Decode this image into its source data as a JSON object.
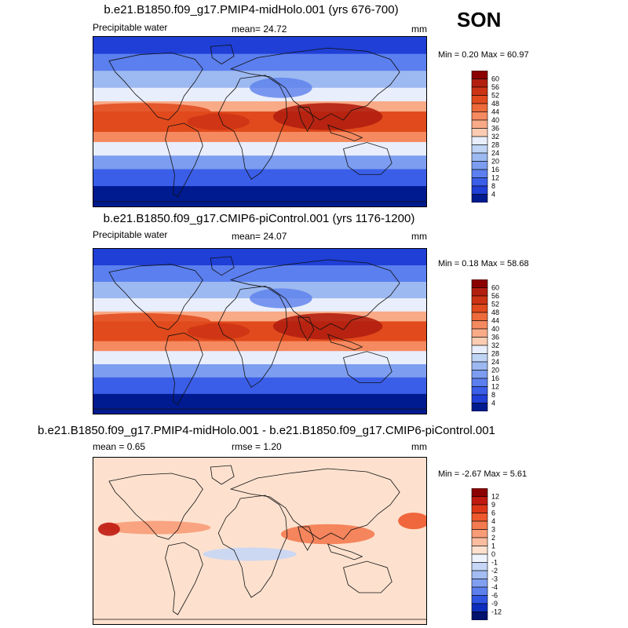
{
  "season": "SON",
  "panels": [
    {
      "title": "b.e21.B1850.f09_g17.PMIP4-midHolo.001 (yrs 676-700)",
      "variable": "Precipitable water",
      "mean": "mean=  24.72",
      "rmse": "",
      "units": "mm",
      "minmax": "Min =   0.20 Max =  60.97",
      "colorbar_labels": [
        "60",
        "56",
        "52",
        "48",
        "44",
        "40",
        "36",
        "32",
        "28",
        "24",
        "20",
        "16",
        "12",
        "8",
        "4"
      ],
      "colors": [
        "#8b0000",
        "#b21f0f",
        "#cc3314",
        "#e14a1c",
        "#ee6a3a",
        "#f5895f",
        "#f9aa86",
        "#fbccb2",
        "#e8eefb",
        "#c0d4f5",
        "#9db9f1",
        "#7c9df0",
        "#5b7fee",
        "#3a5ee8",
        "#1f3fd6",
        "#001a8f"
      ]
    },
    {
      "title": "b.e21.B1850.f09_g17.CMIP6-piControl.001 (yrs 1176-1200)",
      "variable": "Precipitable water",
      "mean": "mean=  24.07",
      "rmse": "",
      "units": "mm",
      "minmax": "Min =   0.18 Max =  58.68",
      "colorbar_labels": [
        "60",
        "56",
        "52",
        "48",
        "44",
        "40",
        "36",
        "32",
        "28",
        "24",
        "20",
        "16",
        "12",
        "8",
        "4"
      ],
      "colors": [
        "#8b0000",
        "#b21f0f",
        "#cc3314",
        "#e14a1c",
        "#ee6a3a",
        "#f5895f",
        "#f9aa86",
        "#fbccb2",
        "#e8eefb",
        "#c0d4f5",
        "#9db9f1",
        "#7c9df0",
        "#5b7fee",
        "#3a5ee8",
        "#1f3fd6",
        "#001a8f"
      ]
    },
    {
      "title": "b.e21.B1850.f09_g17.PMIP4-midHolo.001 - b.e21.B1850.f09_g17.CMIP6-piControl.001",
      "variable": "",
      "mean": "mean =    0.65",
      "rmse": "rmse =    1.20",
      "units": "mm",
      "minmax": "Min =  -2.67 Max =   5.61",
      "colorbar_labels": [
        "12",
        "9",
        "6",
        "4",
        "3",
        "2",
        "1",
        "0",
        "-1",
        "-2",
        "-3",
        "-4",
        "-6",
        "-9",
        "-12"
      ],
      "colors": [
        "#8b0000",
        "#c01a10",
        "#dd3718",
        "#ee5a2e",
        "#f47b50",
        "#f89c78",
        "#fbbd9f",
        "#fde1ce",
        "#eef3fd",
        "#c6d6f6",
        "#a3bcf2",
        "#819ff0",
        "#5d80ee",
        "#2f55e2",
        "#0d2ebd",
        "#00116e"
      ]
    }
  ]
}
